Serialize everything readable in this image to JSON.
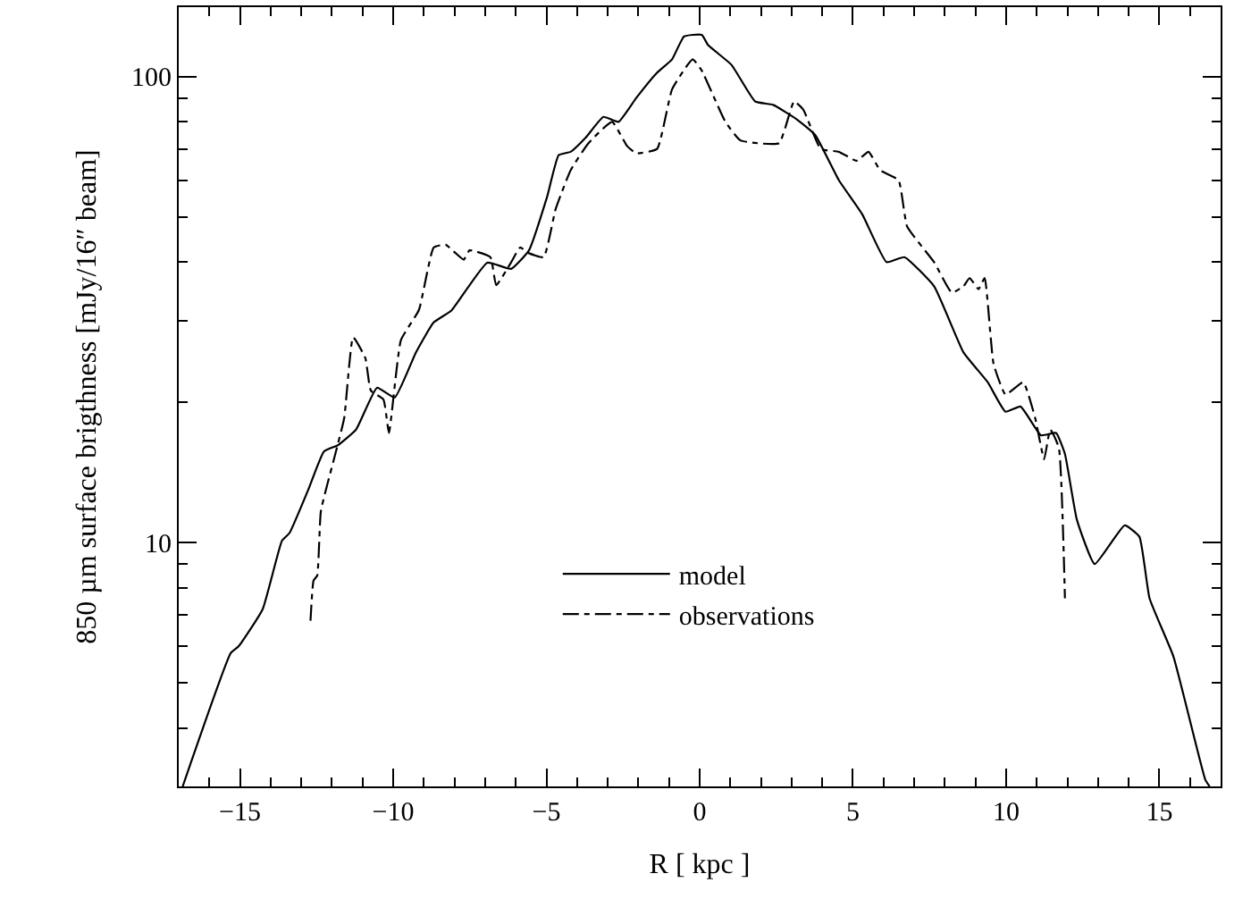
{
  "chart_data": {
    "type": "line",
    "xlabel": "R [ kpc ]",
    "ylabel": "850 µm surface brigthness [mJy/16″ beam]",
    "log": "y",
    "legend": "bottom",
    "marker": "none",
    "xlim": [
      -17,
      17
    ],
    "ylim": [
      3,
      141
    ],
    "xticks": [
      {
        "value": -16,
        "label": null
      },
      -15,
      {
        "value": -14,
        "label": null
      },
      {
        "value": -13,
        "label": null
      },
      {
        "value": -12,
        "label": null
      },
      {
        "value": -11,
        "label": null
      },
      -10,
      {
        "value": -9,
        "label": null
      },
      {
        "value": -8,
        "label": null
      },
      {
        "value": -7,
        "label": null
      },
      {
        "value": -6,
        "label": null
      },
      -5,
      {
        "value": -4,
        "label": null
      },
      {
        "value": -3,
        "label": null
      },
      {
        "value": -2,
        "label": null
      },
      {
        "value": -1,
        "label": null
      },
      0,
      {
        "value": 1,
        "label": null
      },
      {
        "value": 2,
        "label": null
      },
      {
        "value": 3,
        "label": null
      },
      {
        "value": 4,
        "label": null
      },
      5,
      {
        "value": 6,
        "label": null
      },
      {
        "value": 7,
        "label": null
      },
      {
        "value": 8,
        "label": null
      },
      {
        "value": 9,
        "label": null
      },
      10,
      {
        "value": 11,
        "label": null
      },
      {
        "value": 12,
        "label": null
      },
      {
        "value": 13,
        "label": null
      },
      {
        "value": 14,
        "label": null
      },
      15,
      {
        "value": 16,
        "label": null
      }
    ],
    "yticks": [
      {
        "value": 3,
        "label": null
      },
      {
        "value": 4,
        "label": null
      },
      {
        "value": 5,
        "label": null
      },
      {
        "value": 6,
        "label": null
      },
      {
        "value": 7,
        "label": null
      },
      {
        "value": 8,
        "label": null
      },
      {
        "value": 9,
        "label": null
      },
      10,
      {
        "value": 20,
        "label": null
      },
      {
        "value": 30,
        "label": null
      },
      {
        "value": 40,
        "label": null
      },
      {
        "value": 50,
        "label": null
      },
      {
        "value": 60,
        "label": null
      },
      {
        "value": 70,
        "label": null
      },
      {
        "value": 80,
        "label": null
      },
      {
        "value": 90,
        "label": null
      },
      100
    ],
    "series": [
      {
        "name": "model",
        "color": "#000000",
        "line_style": "solid",
        "x": [
          -16.87,
          -15.3,
          -15.04,
          -14.26,
          -13.63,
          -13.38,
          -12.77,
          -12.26,
          -11.8,
          -11.21,
          -10.53,
          -9.95,
          -9.26,
          -8.68,
          -8.1,
          -6.93,
          -6.15,
          -5.57,
          -4.98,
          -4.6,
          -4.21,
          -3.72,
          -3.14,
          -2.65,
          -2.07,
          -1.39,
          -0.9,
          -0.51,
          0.07,
          0.27,
          1.04,
          1.81,
          2.4,
          3.17,
          3.77,
          4.54,
          5.31,
          6.1,
          6.68,
          7.65,
          8.61,
          9.4,
          9.98,
          10.47,
          11.14,
          11.63,
          11.92,
          12.31,
          12.89,
          13.87,
          14.35,
          14.68,
          15.46,
          16.5,
          16.64
        ],
        "values": [
          3.0,
          5.8,
          6.0,
          7.2,
          10.1,
          10.5,
          13,
          15.7,
          16.2,
          17.5,
          21.5,
          20.5,
          25.6,
          29.7,
          31.5,
          39.9,
          38.7,
          42.4,
          55.2,
          67.9,
          69,
          74,
          82,
          80,
          90,
          102,
          109,
          122,
          123,
          117,
          106,
          88.5,
          87,
          81,
          75,
          60,
          50.6,
          40,
          41,
          35.5,
          25.6,
          22.1,
          19.1,
          19.6,
          17,
          17.2,
          15.5,
          11.2,
          9.0,
          10.9,
          10.3,
          7.6,
          5.7,
          3.1,
          3.0
        ]
      },
      {
        "name": "observations",
        "color": "#000000",
        "line_style": "dashdot",
        "x": [
          -12.7,
          -12.6,
          -12.48,
          -12.36,
          -11.89,
          -11.6,
          -11.31,
          -10.91,
          -10.73,
          -10.32,
          -10.14,
          -9.75,
          -9.16,
          -8.68,
          -8.29,
          -7.7,
          -7.51,
          -6.83,
          -6.64,
          -6.15,
          -5.86,
          -5.57,
          -5.09,
          -4.7,
          -4.21,
          -3.63,
          -2.86,
          -2.37,
          -2.07,
          -1.39,
          -0.9,
          -0.23,
          0.07,
          0.84,
          1.33,
          2.59,
          3.08,
          3.38,
          3.95,
          4.54,
          5.12,
          5.51,
          5.89,
          6.49,
          6.77,
          7.65,
          8.23,
          8.61,
          8.81,
          9.1,
          9.3,
          9.59,
          9.98,
          10.56,
          10.95,
          11.24,
          11.44,
          11.72,
          11.92
        ],
        "values": [
          6.8,
          8.3,
          8.5,
          11.7,
          15.5,
          18.5,
          27.6,
          24.9,
          21.2,
          20.3,
          17.2,
          27.2,
          31.6,
          43,
          43.6,
          40.5,
          42.4,
          41,
          35.7,
          40,
          43,
          41.8,
          41,
          52,
          63,
          72,
          80,
          71,
          68.5,
          70,
          94,
          109,
          103,
          80,
          73,
          72,
          88.5,
          85,
          70,
          69,
          66,
          69,
          63,
          60,
          47.7,
          40,
          34.4,
          35.5,
          37,
          35,
          37,
          24.2,
          20.8,
          22.1,
          18.5,
          15.1,
          17.5,
          16,
          7.6
        ]
      }
    ]
  }
}
